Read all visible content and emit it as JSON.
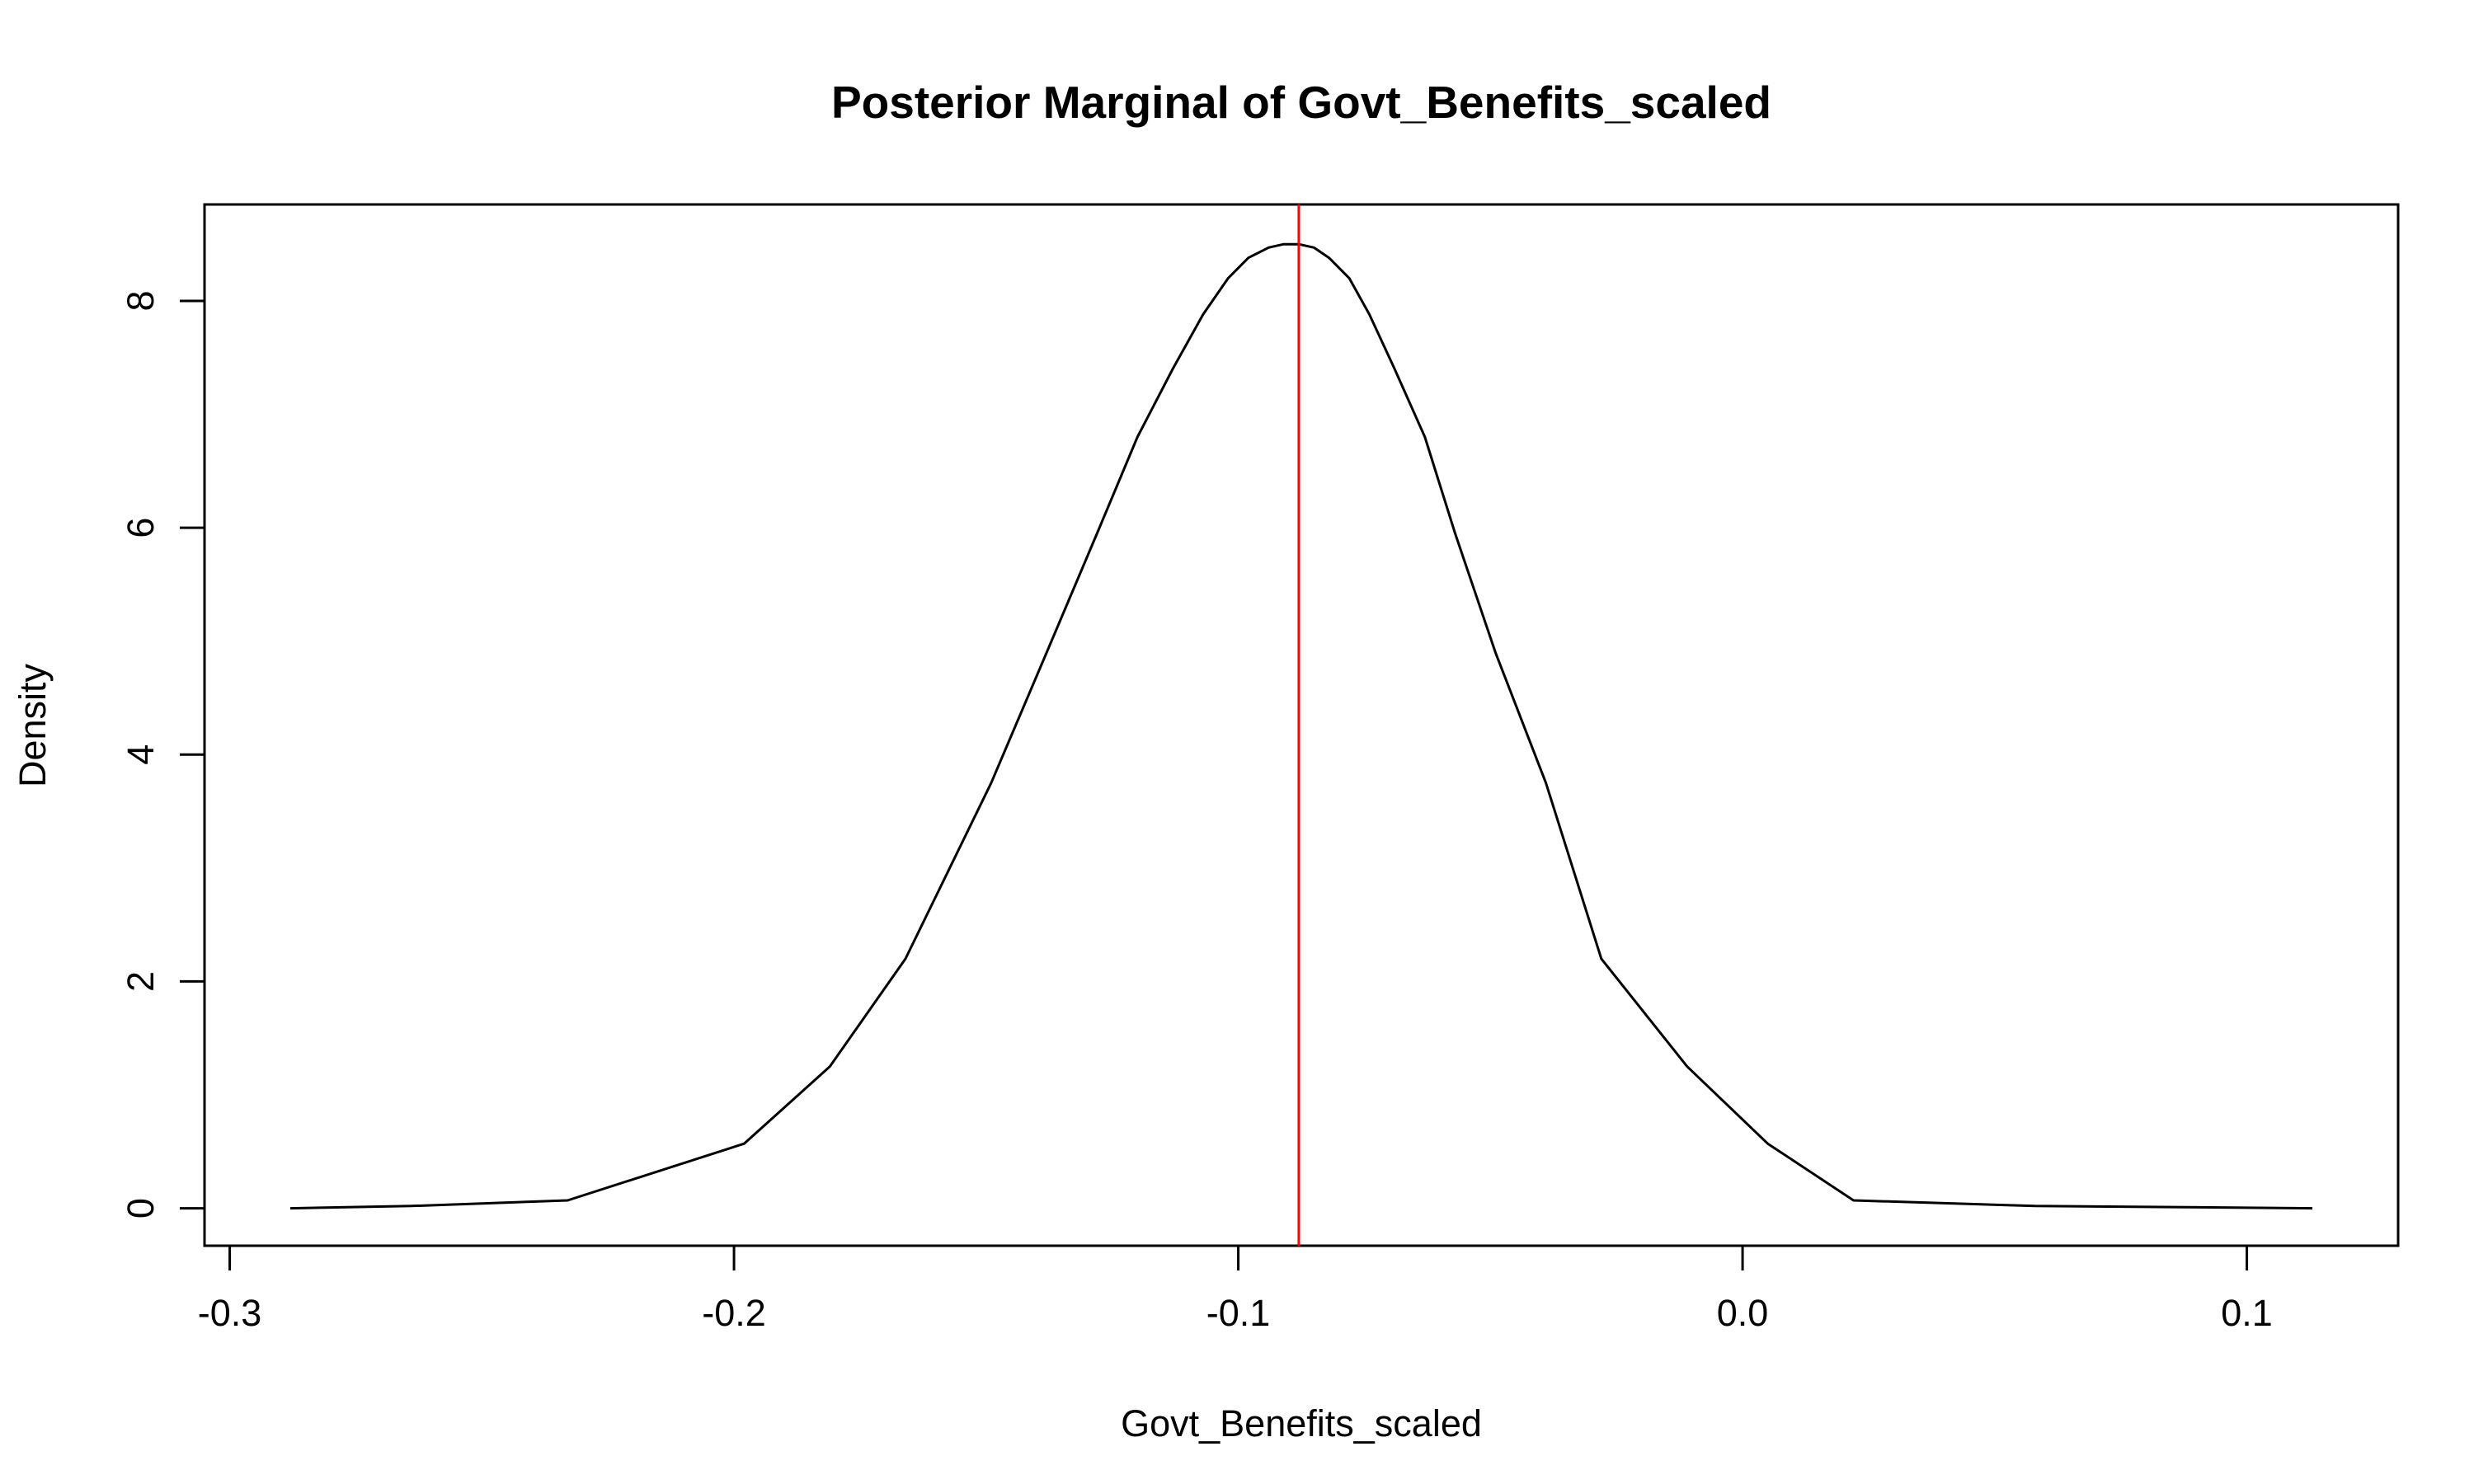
{
  "chart_data": {
    "type": "line",
    "title": "Posterior Marginal of Govt_Benefits_scaled",
    "xlabel": "Govt_Benefits_scaled",
    "ylabel": "Density",
    "xlim": [
      -0.305,
      0.13
    ],
    "ylim": [
      -0.33,
      8.85
    ],
    "xticks": [
      -0.3,
      -0.2,
      -0.1,
      0.0,
      0.1
    ],
    "xtick_labels": [
      "-0.3",
      "-0.2",
      "-0.1",
      "0.0",
      "0.1"
    ],
    "yticks": [
      0,
      2,
      4,
      6,
      8
    ],
    "ytick_labels": [
      "0",
      "2",
      "4",
      "6",
      "8"
    ],
    "grid": false,
    "legend": "none",
    "series": [
      {
        "color": "#000000",
        "x": [
          -0.288,
          -0.264,
          -0.233,
          -0.198,
          -0.181,
          -0.166,
          -0.149,
          -0.138,
          -0.128,
          -0.12,
          -0.113,
          -0.107,
          -0.102,
          -0.098,
          -0.094,
          -0.091,
          -0.088,
          -0.085,
          -0.082,
          -0.078,
          -0.074,
          -0.069,
          -0.063,
          -0.057,
          -0.049,
          -0.039,
          -0.028,
          -0.011,
          0.005,
          0.022,
          0.058,
          0.088,
          0.113
        ],
        "y": [
          0.0,
          0.02,
          0.07,
          0.57,
          1.25,
          2.2,
          3.75,
          4.9,
          5.95,
          6.8,
          7.4,
          7.88,
          8.2,
          8.38,
          8.47,
          8.5,
          8.5,
          8.47,
          8.38,
          8.2,
          7.88,
          7.4,
          6.8,
          5.95,
          4.9,
          3.75,
          2.2,
          1.25,
          0.57,
          0.07,
          0.02,
          0.01,
          0.0
        ]
      }
    ],
    "vlines": [
      {
        "x": -0.088,
        "color": "#ff0000"
      }
    ]
  }
}
